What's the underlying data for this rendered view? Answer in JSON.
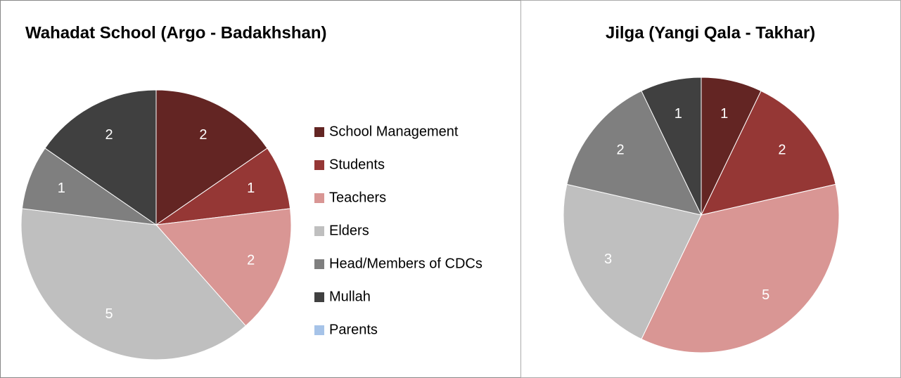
{
  "chart_data": [
    {
      "type": "pie",
      "title": "Wahadat School (Argo - Badakhshan)",
      "categories": [
        "School Management",
        "Students",
        "Teachers",
        "Elders",
        "Head/Members of CDCs",
        "Mullah",
        "Parents"
      ],
      "values": [
        2,
        1,
        2,
        5,
        1,
        2,
        0
      ],
      "colors": [
        "#632523",
        "#953735",
        "#d99694",
        "#bfbfbf",
        "#7f7f7f",
        "#404040",
        "#a6c3e8"
      ],
      "legend": "right"
    },
    {
      "type": "pie",
      "title": "Jilga (Yangi Qala - Takhar)",
      "values": [
        1,
        2,
        5,
        3,
        2,
        1
      ],
      "colors": [
        "#632523",
        "#953735",
        "#d99694",
        "#bfbfbf",
        "#7f7f7f",
        "#404040"
      ]
    }
  ]
}
